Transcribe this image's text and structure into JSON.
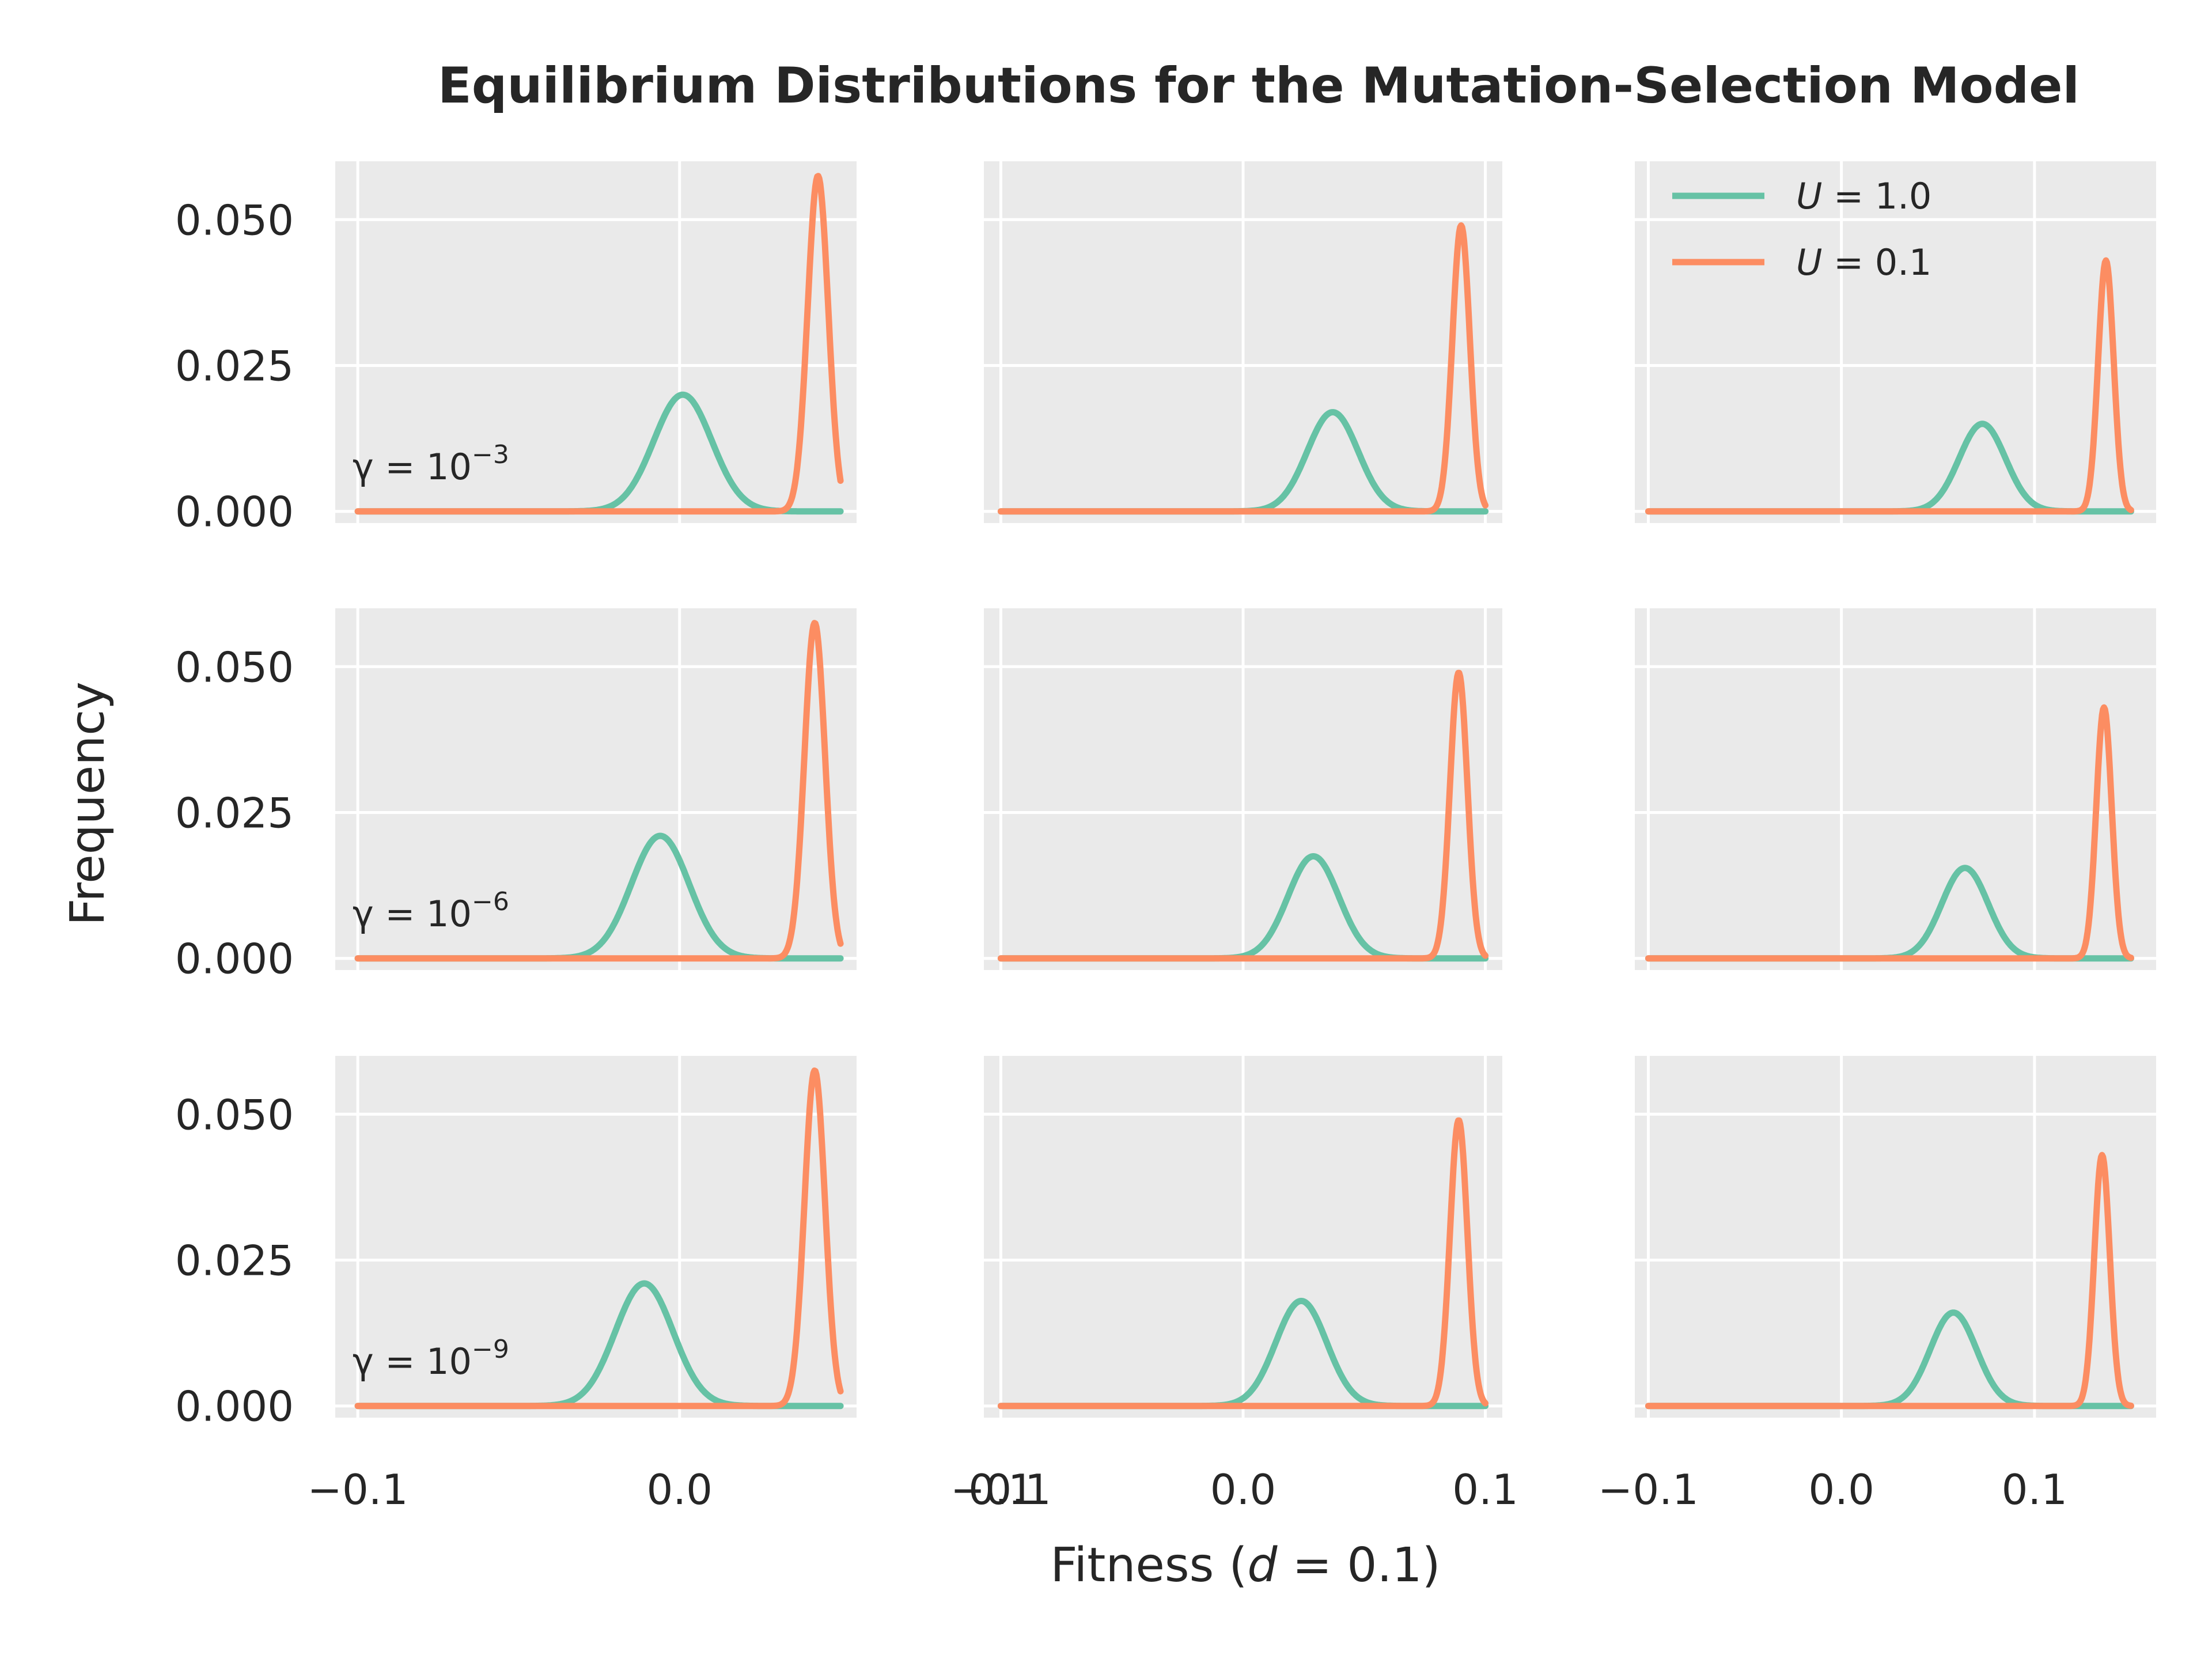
{
  "chart_data": {
    "type": "line",
    "title": "Equilibrium Distributions for the Mutation-Selection Model",
    "xlabel": "Fitness (d = 0.1)",
    "ylabel": "Frequency",
    "grid": true,
    "layout": "3x3 grid of subplots, shared y-axis per row, shared x-axis per column",
    "ylim": [
      -0.002,
      0.06
    ],
    "yticks": [
      0.0,
      0.025,
      0.05
    ],
    "ytick_labels": [
      "0.000",
      "0.025",
      "0.050"
    ],
    "xticks": [
      -0.1,
      0.0,
      0.1
    ],
    "xtick_labels": [
      "−0.1",
      "0.0",
      "0.1"
    ],
    "column_xlim": [
      [
        -0.107,
        0.055
      ],
      [
        -0.107,
        0.107
      ],
      [
        -0.107,
        0.163
      ]
    ],
    "row_annotations": [
      {
        "text": "γ = 10",
        "exponent": "−3"
      },
      {
        "text": "γ = 10",
        "exponent": "−6"
      },
      {
        "text": "γ = 10",
        "exponent": "−9"
      }
    ],
    "legend": {
      "position": "upper right of top-right panel",
      "entries": [
        {
          "name": "U = 1.0",
          "var": "U",
          "rest": " = 1.0",
          "color": "#66c2a5"
        },
        {
          "name": "U = 0.1",
          "var": "U",
          "rest": " = 0.1",
          "color": "#fc8d62"
        }
      ]
    },
    "series_colors": {
      "U=1.0": "#66c2a5",
      "U=0.1": "#fc8d62"
    },
    "line_x_range": [
      [
        -0.1,
        0.05
      ],
      [
        -0.1,
        0.1
      ],
      [
        -0.1,
        0.15
      ]
    ],
    "panels": [
      {
        "row": 0,
        "col": 0,
        "U1": {
          "peak_x": 0.001,
          "peak_y": 0.02,
          "sigma": 0.009
        },
        "U01": {
          "peak_x": 0.043,
          "peak_y": 0.0575,
          "sigma": 0.0032
        }
      },
      {
        "row": 0,
        "col": 1,
        "U1": {
          "peak_x": 0.037,
          "peak_y": 0.017,
          "sigma": 0.0105
        },
        "U01": {
          "peak_x": 0.09,
          "peak_y": 0.049,
          "sigma": 0.0036
        }
      },
      {
        "row": 0,
        "col": 2,
        "U1": {
          "peak_x": 0.073,
          "peak_y": 0.015,
          "sigma": 0.012
        },
        "U01": {
          "peak_x": 0.137,
          "peak_y": 0.043,
          "sigma": 0.004
        }
      },
      {
        "row": 1,
        "col": 0,
        "U1": {
          "peak_x": -0.006,
          "peak_y": 0.021,
          "sigma": 0.009
        },
        "U01": {
          "peak_x": 0.042,
          "peak_y": 0.0575,
          "sigma": 0.0032
        }
      },
      {
        "row": 1,
        "col": 1,
        "U1": {
          "peak_x": 0.029,
          "peak_y": 0.0175,
          "sigma": 0.0105
        },
        "U01": {
          "peak_x": 0.089,
          "peak_y": 0.049,
          "sigma": 0.0036
        }
      },
      {
        "row": 1,
        "col": 2,
        "U1": {
          "peak_x": 0.064,
          "peak_y": 0.0155,
          "sigma": 0.012
        },
        "U01": {
          "peak_x": 0.136,
          "peak_y": 0.043,
          "sigma": 0.004
        }
      },
      {
        "row": 2,
        "col": 0,
        "U1": {
          "peak_x": -0.011,
          "peak_y": 0.021,
          "sigma": 0.009
        },
        "U01": {
          "peak_x": 0.042,
          "peak_y": 0.0575,
          "sigma": 0.0032
        }
      },
      {
        "row": 2,
        "col": 1,
        "U1": {
          "peak_x": 0.024,
          "peak_y": 0.018,
          "sigma": 0.0105
        },
        "U01": {
          "peak_x": 0.089,
          "peak_y": 0.049,
          "sigma": 0.0036
        }
      },
      {
        "row": 2,
        "col": 2,
        "U1": {
          "peak_x": 0.058,
          "peak_y": 0.016,
          "sigma": 0.012
        },
        "U01": {
          "peak_x": 0.135,
          "peak_y": 0.043,
          "sigma": 0.004
        }
      }
    ]
  }
}
